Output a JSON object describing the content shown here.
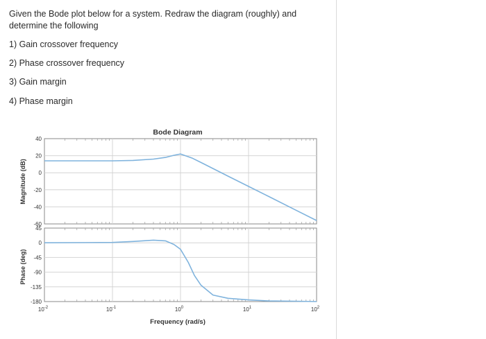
{
  "question": {
    "text": "Given the Bode plot below for a system. Redraw the diagram (roughly) and determine the following",
    "items": [
      "1) Gain crossover frequency",
      "2) Phase crossover frequency",
      "3) Gain margin",
      "4) Phase margin"
    ]
  },
  "chart_data": {
    "type": "line",
    "title": "Bode Diagram",
    "xlabel": "Frequency (rad/s)",
    "x_scale": "log",
    "xlim": [
      0.01,
      100
    ],
    "x_ticks": [
      0.01,
      0.1,
      1,
      10,
      100
    ],
    "x_tick_labels": [
      "10^-2",
      "10^-1",
      "10^0",
      "10^1",
      "10^2"
    ],
    "grid": true,
    "line_color": "#7fb3dd",
    "panels": [
      {
        "name": "magnitude",
        "ylabel": "Magnitude (dB)",
        "ylim": [
          -60,
          40
        ],
        "y_ticks": [
          40,
          20,
          0,
          -20,
          -40,
          -60
        ],
        "x": [
          0.01,
          0.1,
          0.2,
          0.4,
          0.6,
          0.8,
          1,
          1.5,
          2,
          3,
          5,
          10,
          20,
          50,
          100
        ],
        "y": [
          14,
          14,
          14.5,
          16,
          18,
          20.5,
          22,
          17,
          12,
          5,
          -4,
          -16,
          -28,
          -44,
          -56
        ]
      },
      {
        "name": "phase",
        "ylabel": "Phase (deg)",
        "ylim": [
          -180,
          45
        ],
        "y_ticks": [
          45,
          0,
          -45,
          -90,
          -135,
          -180
        ],
        "x": [
          0.01,
          0.1,
          0.2,
          0.4,
          0.6,
          0.8,
          1,
          1.3,
          1.6,
          2,
          3,
          5,
          10,
          20,
          50,
          100
        ],
        "y": [
          0,
          1,
          4,
          8,
          6,
          -5,
          -20,
          -60,
          -100,
          -130,
          -160,
          -170,
          -175,
          -178,
          -179,
          -180
        ]
      }
    ]
  },
  "tick_text": {
    "base": "10",
    "exps": [
      "-2",
      "-1",
      "0",
      "1",
      "2"
    ],
    "mag_y": [
      "40",
      "20",
      "0",
      "-20",
      "-40",
      "-60"
    ],
    "phase_y": [
      "45",
      "0",
      "-45",
      "-90",
      "-135",
      "-180"
    ]
  }
}
